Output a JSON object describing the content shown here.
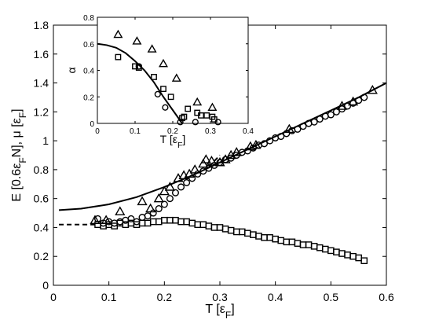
{
  "chart_data": [
    {
      "type": "scatter",
      "role": "main",
      "xlabel": {
        "base": "T [ε",
        "sub": "F",
        "end": "]"
      },
      "ylabel": {
        "base": "E [0.6ε",
        "sub": "F",
        "end": "N],    μ [ε",
        "sub2": "F",
        "end2": "]"
      },
      "xlim": [
        0,
        0.6
      ],
      "ylim": [
        0,
        1.8
      ],
      "xticks": [
        0,
        0.1,
        0.2,
        0.3,
        0.4,
        0.5,
        0.6
      ],
      "xtick_labels": [
        "0",
        "0.1",
        "0.2",
        "0.3",
        "0.4",
        "0.5",
        "0.6"
      ],
      "yticks": [
        0,
        0.2,
        0.4,
        0.6,
        0.8,
        1.0,
        1.2,
        1.4,
        1.6,
        1.8
      ],
      "ytick_labels": [
        "0",
        "0.2",
        "0.4",
        "0.6",
        "0.8",
        "1",
        "1.2",
        "1.4",
        "1.6",
        "1.8"
      ],
      "grid": false,
      "legend": "none",
      "series": [
        {
          "marker": "triangle",
          "x": [
            0.075,
            0.095,
            0.12,
            0.16,
            0.175,
            0.19,
            0.2,
            0.21,
            0.225,
            0.235,
            0.245,
            0.255,
            0.27,
            0.275,
            0.285,
            0.3,
            0.31,
            0.32,
            0.33,
            0.355,
            0.365,
            0.425,
            0.52,
            0.54,
            0.575
          ],
          "y": [
            0.45,
            0.45,
            0.51,
            0.58,
            0.53,
            0.6,
            0.65,
            0.68,
            0.74,
            0.76,
            0.77,
            0.8,
            0.84,
            0.87,
            0.86,
            0.85,
            0.87,
            0.9,
            0.92,
            0.96,
            0.97,
            1.08,
            1.24,
            1.27,
            1.35
          ]
        },
        {
          "marker": "circle",
          "x": [
            0.08,
            0.09,
            0.1,
            0.11,
            0.12,
            0.13,
            0.14,
            0.15,
            0.16,
            0.17,
            0.18,
            0.19,
            0.2,
            0.21,
            0.22,
            0.23,
            0.24,
            0.25,
            0.26,
            0.27,
            0.28,
            0.29,
            0.3,
            0.31,
            0.32,
            0.33,
            0.34,
            0.35,
            0.36,
            0.37,
            0.38,
            0.39,
            0.4,
            0.41,
            0.42,
            0.43,
            0.44,
            0.45,
            0.46,
            0.47,
            0.48,
            0.49,
            0.5,
            0.51,
            0.52,
            0.53,
            0.54,
            0.55,
            0.56
          ],
          "y": [
            0.46,
            0.43,
            0.44,
            0.43,
            0.44,
            0.45,
            0.46,
            0.44,
            0.47,
            0.48,
            0.5,
            0.53,
            0.56,
            0.6,
            0.64,
            0.68,
            0.71,
            0.74,
            0.77,
            0.79,
            0.81,
            0.83,
            0.85,
            0.87,
            0.88,
            0.9,
            0.92,
            0.93,
            0.95,
            0.97,
            0.98,
            1.0,
            1.02,
            1.03,
            1.05,
            1.07,
            1.08,
            1.1,
            1.12,
            1.13,
            1.15,
            1.17,
            1.18,
            1.2,
            1.22,
            1.24,
            1.26,
            1.28,
            1.3
          ]
        },
        {
          "marker": "square",
          "x": [
            0.08,
            0.09,
            0.1,
            0.11,
            0.12,
            0.13,
            0.14,
            0.15,
            0.16,
            0.17,
            0.18,
            0.19,
            0.2,
            0.21,
            0.22,
            0.23,
            0.24,
            0.25,
            0.26,
            0.27,
            0.28,
            0.29,
            0.3,
            0.31,
            0.32,
            0.33,
            0.34,
            0.35,
            0.36,
            0.37,
            0.38,
            0.39,
            0.4,
            0.41,
            0.42,
            0.43,
            0.44,
            0.45,
            0.46,
            0.47,
            0.48,
            0.49,
            0.5,
            0.51,
            0.52,
            0.53,
            0.54,
            0.55,
            0.56
          ],
          "y": [
            0.42,
            0.41,
            0.42,
            0.41,
            0.43,
            0.42,
            0.43,
            0.42,
            0.43,
            0.43,
            0.44,
            0.44,
            0.45,
            0.45,
            0.45,
            0.44,
            0.44,
            0.43,
            0.42,
            0.42,
            0.41,
            0.4,
            0.4,
            0.39,
            0.38,
            0.37,
            0.37,
            0.36,
            0.35,
            0.34,
            0.33,
            0.33,
            0.32,
            0.31,
            0.3,
            0.3,
            0.29,
            0.28,
            0.28,
            0.27,
            0.26,
            0.25,
            0.24,
            0.23,
            0.22,
            0.21,
            0.2,
            0.19,
            0.17
          ]
        }
      ],
      "lines": [
        {
          "style": "solid",
          "x": [
            0.01,
            0.05,
            0.1,
            0.15,
            0.2,
            0.25,
            0.3,
            0.35,
            0.4,
            0.45,
            0.5,
            0.55,
            0.6
          ],
          "y": [
            0.52,
            0.53,
            0.56,
            0.61,
            0.68,
            0.76,
            0.85,
            0.94,
            1.03,
            1.12,
            1.21,
            1.3,
            1.4
          ]
        },
        {
          "style": "dashed",
          "x": [
            0.01,
            0.08
          ],
          "y": [
            0.42,
            0.42
          ]
        },
        {
          "style": "dashed",
          "x": [
            0.28,
            0.3
          ],
          "y": [
            0.82,
            0.9
          ]
        }
      ]
    },
    {
      "type": "scatter",
      "role": "inset",
      "xlabel": {
        "base": "T [ε",
        "sub": "F",
        "end": "]"
      },
      "ylabel": "α",
      "xlim": [
        0,
        0.4
      ],
      "ylim": [
        0,
        0.8
      ],
      "xticks": [
        0,
        0.1,
        0.2,
        0.3,
        0.4
      ],
      "xtick_labels": [
        "0",
        "0.1",
        "0.2",
        "0.3",
        "0.4"
      ],
      "yticks": [
        0,
        0.2,
        0.4,
        0.6,
        0.8
      ],
      "ytick_labels": [
        "0",
        "0.2",
        "0.4",
        "0.6",
        "0.8"
      ],
      "grid": false,
      "legend": "none",
      "series": [
        {
          "marker": "triangle",
          "x": [
            0.055,
            0.105,
            0.145,
            0.175,
            0.21,
            0.265,
            0.305
          ],
          "y": [
            0.67,
            0.62,
            0.56,
            0.45,
            0.34,
            0.16,
            0.12
          ]
        },
        {
          "marker": "square",
          "x": [
            0.055,
            0.1,
            0.11,
            0.15,
            0.175,
            0.195,
            0.225,
            0.23,
            0.24,
            0.265,
            0.275,
            0.29,
            0.305,
            0.31
          ],
          "y": [
            0.5,
            0.43,
            0.42,
            0.35,
            0.26,
            0.2,
            0.04,
            0.05,
            0.11,
            0.08,
            0.06,
            0.06,
            0.05,
            0.03
          ]
        },
        {
          "marker": "circle",
          "x": [
            0.11,
            0.16,
            0.18,
            0.22,
            0.26,
            0.32
          ],
          "y": [
            0.43,
            0.22,
            0.12,
            0.01,
            0.01,
            0.01
          ]
        }
      ],
      "lines": [
        {
          "style": "solid",
          "x": [
            0,
            0.025,
            0.05,
            0.075,
            0.1,
            0.125,
            0.15,
            0.175,
            0.2,
            0.215,
            0.225
          ],
          "y": [
            0.6,
            0.59,
            0.57,
            0.53,
            0.47,
            0.4,
            0.31,
            0.2,
            0.1,
            0.04,
            0.0
          ]
        }
      ]
    }
  ]
}
